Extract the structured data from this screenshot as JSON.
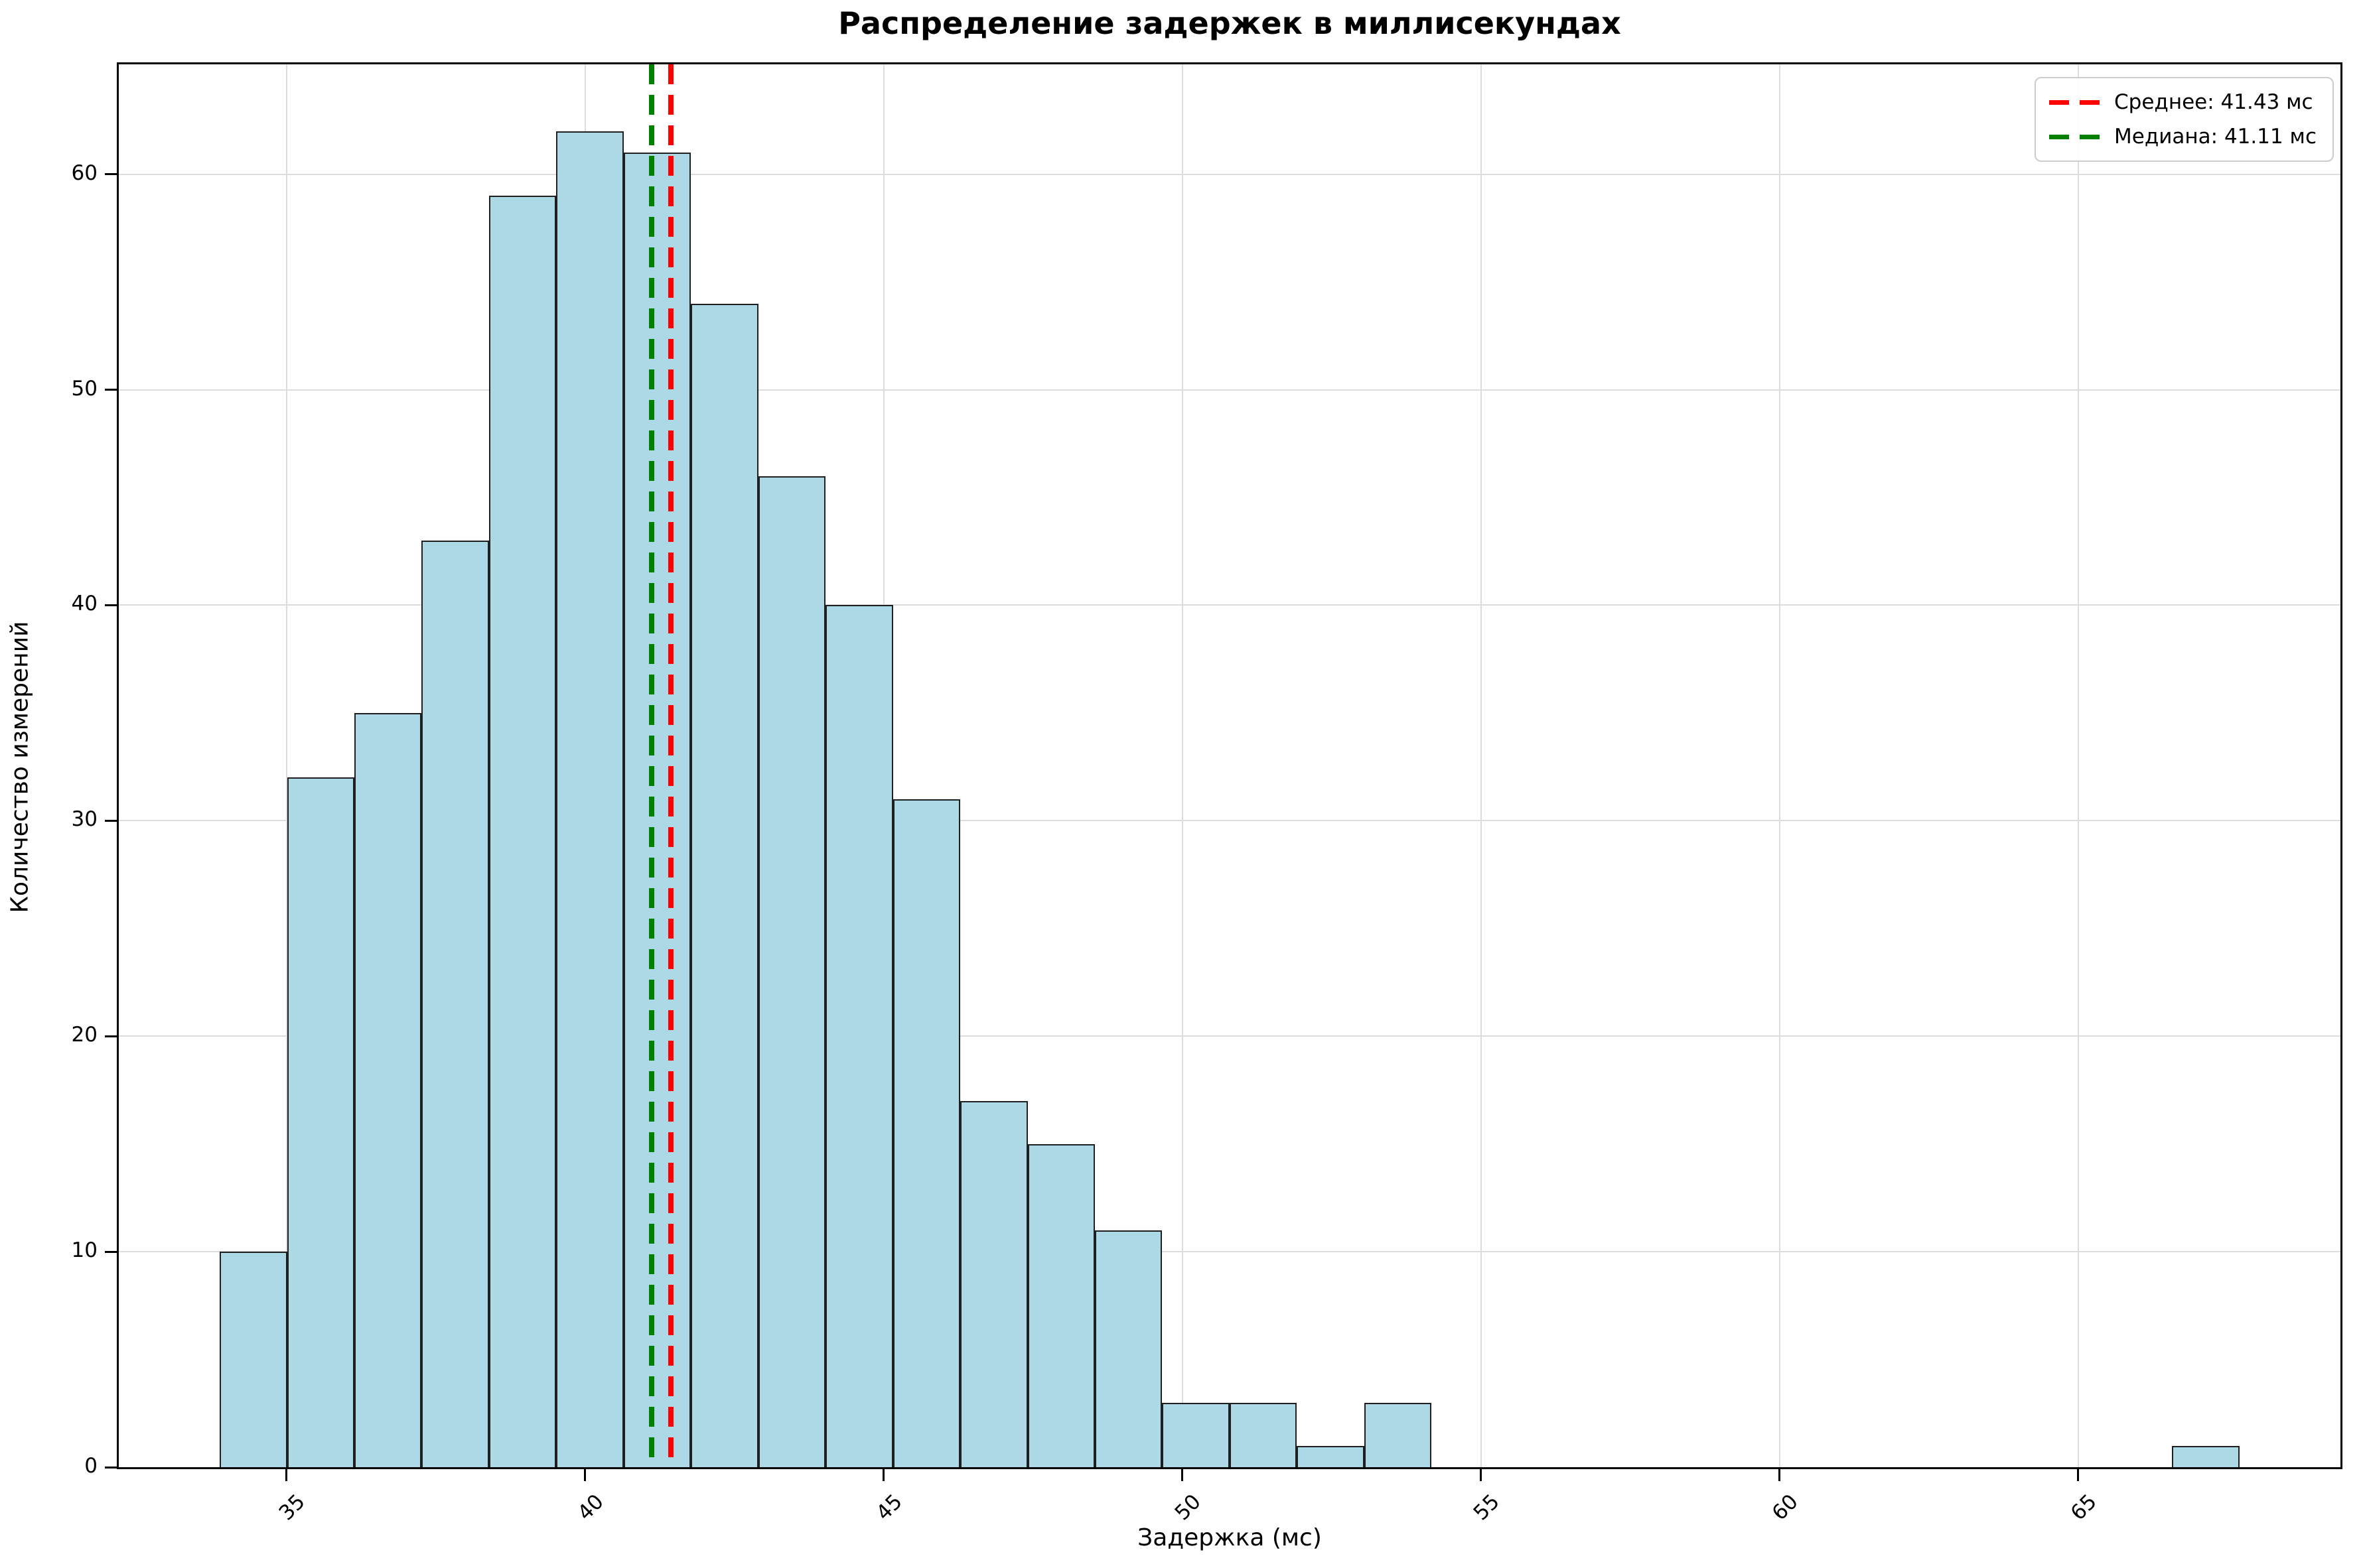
{
  "title": "Распределение задержек в миллисекундах",
  "xlabel": "Задержка (мс)",
  "ylabel": "Количество измерений",
  "legend": {
    "position": "upper right",
    "items": [
      {
        "name": "mean",
        "label": "Среднее: 41.43 мс",
        "color": "#ff0000",
        "style": "dashed"
      },
      {
        "name": "median",
        "label": "Медиана: 41.11 мс",
        "color": "#008000",
        "style": "dashed"
      }
    ]
  },
  "chart_data": {
    "type": "bar",
    "subtype": "histogram",
    "title": "Распределение задержек в миллисекундах",
    "xlabel": "Задержка (мс)",
    "ylabel": "Количество измерений",
    "bin_start": 33.88,
    "bin_width": 1.1273,
    "counts": [
      10,
      32,
      35,
      43,
      59,
      62,
      61,
      54,
      46,
      40,
      31,
      17,
      15,
      11,
      3,
      3,
      1,
      3,
      0,
      0,
      0,
      0,
      0,
      0,
      0,
      0,
      0,
      0,
      0,
      1
    ],
    "mean": 41.43,
    "median": 41.11,
    "xticks": [
      35,
      40,
      45,
      50,
      55,
      60,
      65
    ],
    "yticks": [
      0,
      10,
      20,
      30,
      40,
      50,
      60
    ],
    "xlim": [
      32.19,
      69.39
    ],
    "ylim": [
      0,
      65.1
    ],
    "grid": true,
    "bar_color": "#add8e6",
    "bar_edge_color": "#1f1f1f",
    "mean_line_color": "#ff0000",
    "median_line_color": "#008000",
    "grid_color": "#dcdcdc",
    "legend_position": "upper right"
  }
}
